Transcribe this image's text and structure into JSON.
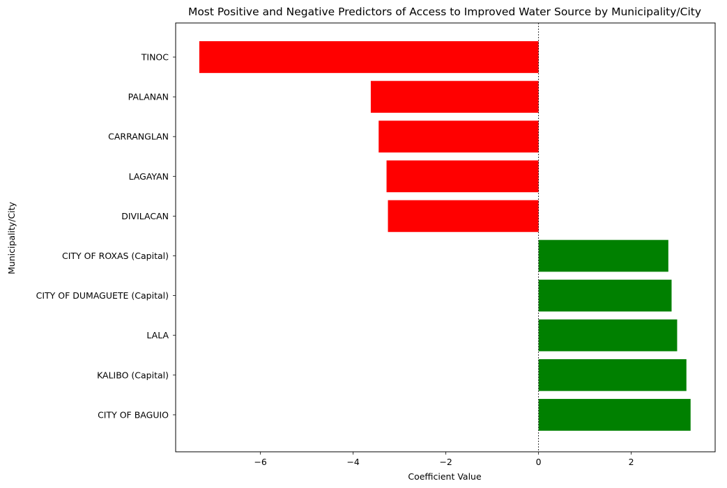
{
  "chart_data": {
    "type": "bar",
    "orientation": "horizontal",
    "title": "Most Positive and Negative Predictors of Access to Improved Water Source by Municipality/City",
    "xlabel": "Coefficient Value",
    "ylabel": "Municipality/City",
    "categories": [
      "TINOC",
      "PALANAN",
      "CARRANGLAN",
      "LAGAYAN",
      "DIVILACAN",
      "CITY OF ROXAS (Capital)",
      "CITY OF DUMAGUETE (Capital)",
      "LALA",
      "KALIBO (Capital)",
      "CITY OF BAGUIO"
    ],
    "values": [
      -7.32,
      -3.62,
      -3.45,
      -3.28,
      -3.25,
      2.8,
      2.87,
      2.99,
      3.19,
      3.28
    ],
    "colors": {
      "negative": "#ff0000",
      "positive": "#008000"
    },
    "xlim": [
      -7.83,
      3.81
    ],
    "xticks": [
      -6,
      -4,
      -2,
      0,
      2
    ],
    "xtick_labels": [
      "−6",
      "−4",
      "−2",
      "0",
      "2"
    ],
    "reference_line": {
      "x": 0,
      "style": "dashed",
      "color": "#000000"
    },
    "grid": false,
    "legend": null
  }
}
